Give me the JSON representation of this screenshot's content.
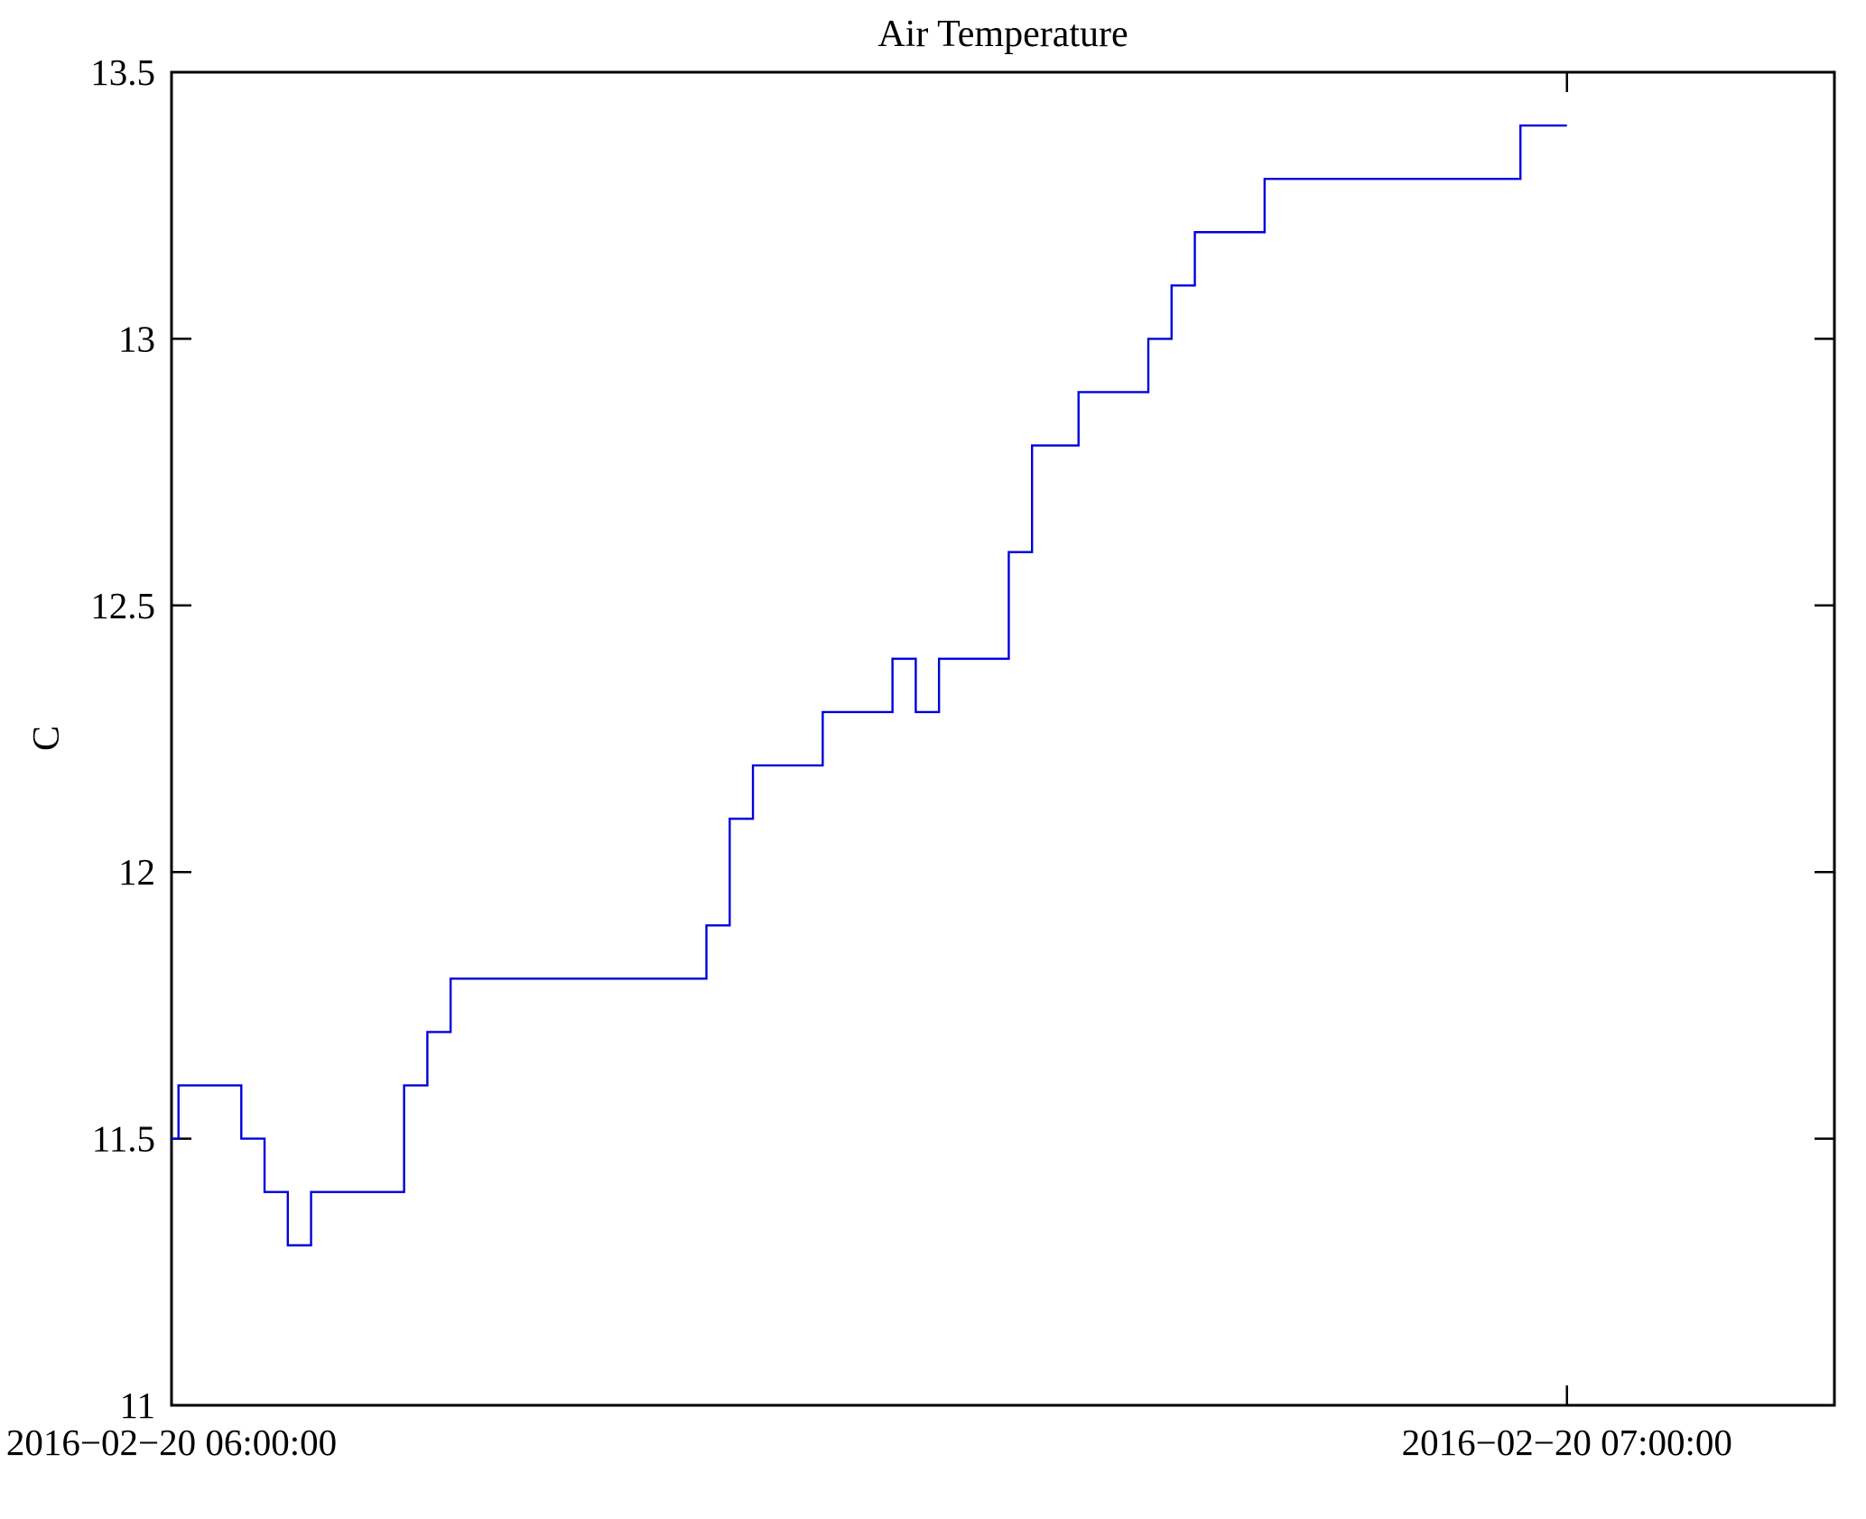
{
  "chart_data": {
    "type": "line",
    "step_mode": "post",
    "title": "Air Temperature",
    "ylabel": "C",
    "xlabel": "",
    "grid": false,
    "legend_position": "none",
    "line_color": "#0000dd",
    "frame_color": "#000000",
    "background_color": "#ffffff",
    "ylim": [
      11,
      13.5
    ],
    "xlim_minutes": [
      0,
      71.5
    ],
    "x_start_datetime": "2016-02-20 06:00:00",
    "x_end_minute": 60,
    "x_minutes": [
      0,
      0.3,
      3,
      4,
      5,
      6,
      10,
      11,
      12,
      23,
      24,
      25,
      28,
      31,
      32,
      33,
      36,
      37,
      39,
      42,
      43,
      44,
      47,
      58
    ],
    "values": [
      11.5,
      11.6,
      11.5,
      11.4,
      11.3,
      11.4,
      11.6,
      11.7,
      11.8,
      11.9,
      12.1,
      12.2,
      12.3,
      12.4,
      12.3,
      12.4,
      12.6,
      12.8,
      12.9,
      13.0,
      13.1,
      13.2,
      13.3,
      13.4
    ],
    "xticks": [
      {
        "minute": 0,
        "label": "2016−02−20 06:00:00"
      },
      {
        "minute": 60,
        "label": "2016−02−20 07:00:00"
      }
    ],
    "yticks": [
      {
        "value": 11,
        "label": "11"
      },
      {
        "value": 11.5,
        "label": "11.5"
      },
      {
        "value": 12,
        "label": "12"
      },
      {
        "value": 12.5,
        "label": "12.5"
      },
      {
        "value": 13,
        "label": "13"
      },
      {
        "value": 13.5,
        "label": "13.5"
      }
    ]
  }
}
